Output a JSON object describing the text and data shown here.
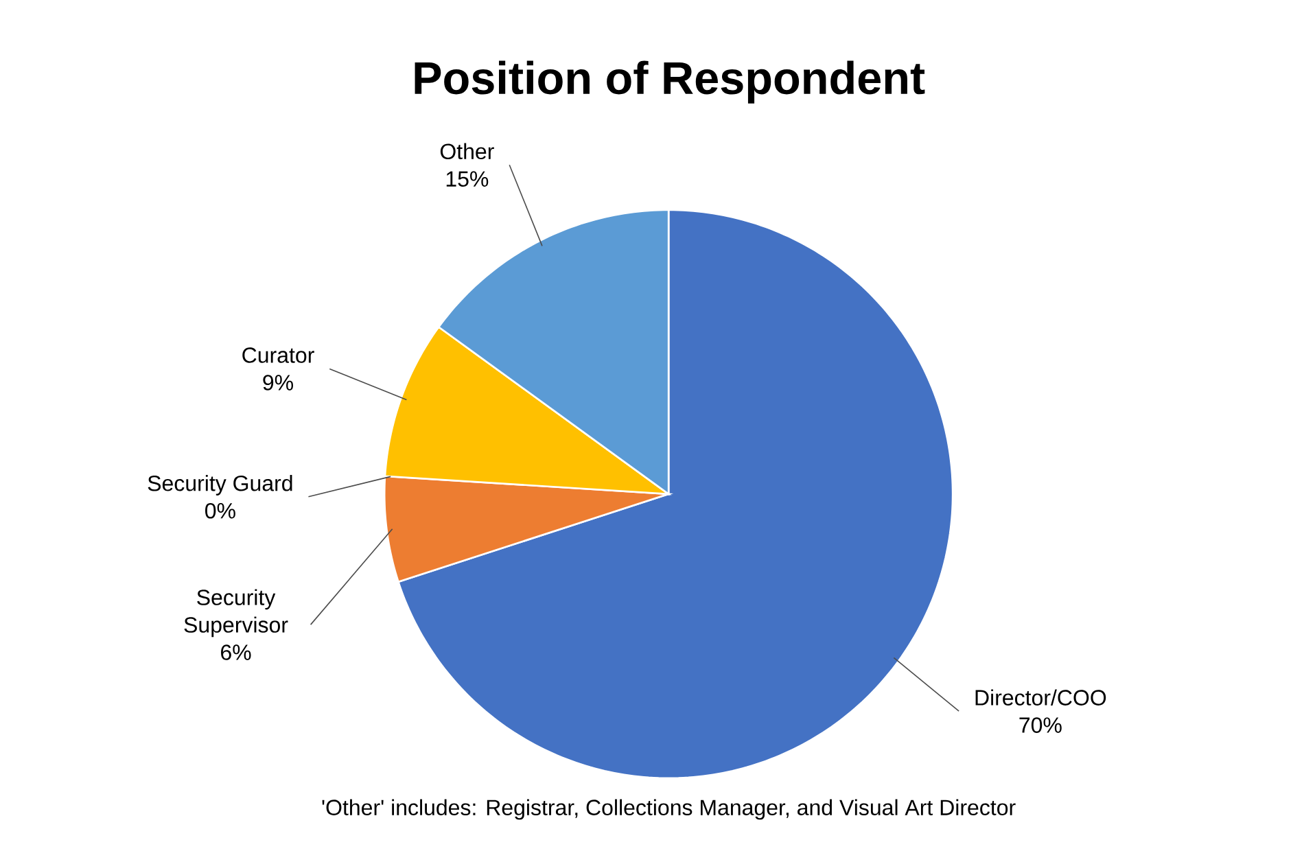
{
  "chart_data": {
    "type": "pie",
    "title": "Position of Respondent",
    "categories": [
      "Director/COO",
      "Security Supervisor",
      "Security Guard",
      "Curator",
      "Other"
    ],
    "values": [
      70,
      6,
      0,
      9,
      15
    ],
    "value_labels": [
      "70%",
      "6%",
      "0%",
      "9%",
      "15%"
    ],
    "colors": [
      "#4472c4",
      "#ed7d31",
      "#a5a5a5",
      "#ffc000",
      "#5b9bd5"
    ],
    "annotations": [
      "'Other' includes: Registrar, Collections Manager, and Visual Art Director"
    ]
  }
}
